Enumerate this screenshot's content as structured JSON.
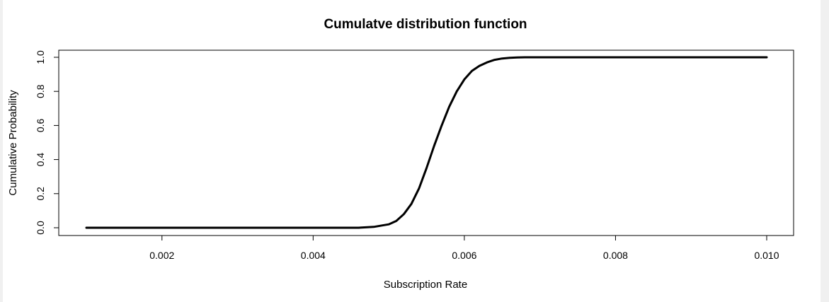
{
  "chart_data": {
    "type": "line",
    "title": "Cumulatve distribution function",
    "xlabel": "Subscription Rate",
    "ylabel": "Cumulative Probability",
    "xlim": [
      0.001,
      0.01
    ],
    "ylim": [
      0,
      1
    ],
    "x_ticks": [
      "0.002",
      "0.004",
      "0.006",
      "0.008",
      "0.010"
    ],
    "y_ticks": [
      "0.0",
      "0.2",
      "0.4",
      "0.6",
      "0.8",
      "1.0"
    ],
    "grid": false,
    "legend": "none",
    "line_color": "#000000",
    "series": [
      {
        "x": [
          0.001,
          0.002,
          0.003,
          0.004,
          0.0046,
          0.0048,
          0.005,
          0.0051,
          0.0052,
          0.0053,
          0.0054,
          0.0055,
          0.0056,
          0.0057,
          0.0058,
          0.0059,
          0.006,
          0.0061,
          0.0062,
          0.0063,
          0.0064,
          0.0065,
          0.0066,
          0.0067,
          0.0068,
          0.007,
          0.0075,
          0.008,
          0.009,
          0.01
        ],
        "y": [
          0.0,
          0.0,
          0.0,
          0.0,
          0.0,
          0.005,
          0.02,
          0.04,
          0.08,
          0.14,
          0.23,
          0.35,
          0.48,
          0.6,
          0.71,
          0.8,
          0.87,
          0.92,
          0.95,
          0.97,
          0.985,
          0.993,
          0.997,
          0.999,
          1.0,
          1.0,
          1.0,
          1.0,
          1.0,
          1.0
        ]
      }
    ]
  }
}
